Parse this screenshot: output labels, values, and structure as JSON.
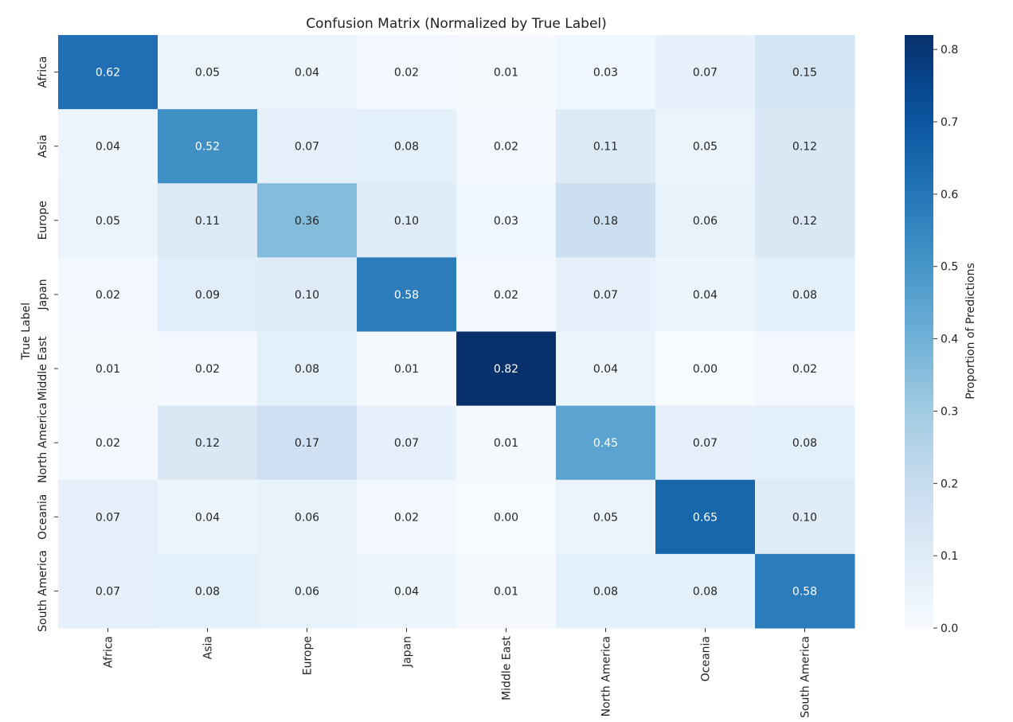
{
  "chart_data": {
    "type": "heatmap",
    "title": "Confusion Matrix (Normalized by True Label)",
    "xlabel": "",
    "ylabel": "True Label",
    "x_categories": [
      "Africa",
      "Asia",
      "Europe",
      "Japan",
      "Middle East",
      "North America",
      "Oceania",
      "South America"
    ],
    "y_categories": [
      "Africa",
      "Asia",
      "Europe",
      "Japan",
      "Middle East",
      "North America",
      "Oceania",
      "South America"
    ],
    "values": [
      [
        0.62,
        0.05,
        0.04,
        0.02,
        0.01,
        0.03,
        0.07,
        0.15
      ],
      [
        0.04,
        0.52,
        0.07,
        0.08,
        0.02,
        0.11,
        0.05,
        0.12
      ],
      [
        0.05,
        0.11,
        0.36,
        0.1,
        0.03,
        0.18,
        0.06,
        0.12
      ],
      [
        0.02,
        0.09,
        0.1,
        0.58,
        0.02,
        0.07,
        0.04,
        0.08
      ],
      [
        0.01,
        0.02,
        0.08,
        0.01,
        0.82,
        0.04,
        0.0,
        0.02
      ],
      [
        0.02,
        0.12,
        0.17,
        0.07,
        0.01,
        0.45,
        0.07,
        0.08
      ],
      [
        0.07,
        0.04,
        0.06,
        0.02,
        0.0,
        0.05,
        0.65,
        0.1
      ],
      [
        0.07,
        0.08,
        0.06,
        0.04,
        0.01,
        0.08,
        0.08,
        0.58
      ]
    ],
    "colorscale": "Blues",
    "colorbar": {
      "label": "Proportion of Predictions",
      "range": [
        0.0,
        0.82
      ],
      "ticks": [
        0.0,
        0.1,
        0.2,
        0.3,
        0.4,
        0.5,
        0.6,
        0.7,
        0.8
      ],
      "tick_labels": [
        "0.0",
        "0.1",
        "0.2",
        "0.3",
        "0.4",
        "0.5",
        "0.6",
        "0.7",
        "0.8"
      ]
    },
    "annotations_format": "0.00",
    "colors": {
      "text_dark": "#262626",
      "text_light": "#ffffff"
    }
  }
}
